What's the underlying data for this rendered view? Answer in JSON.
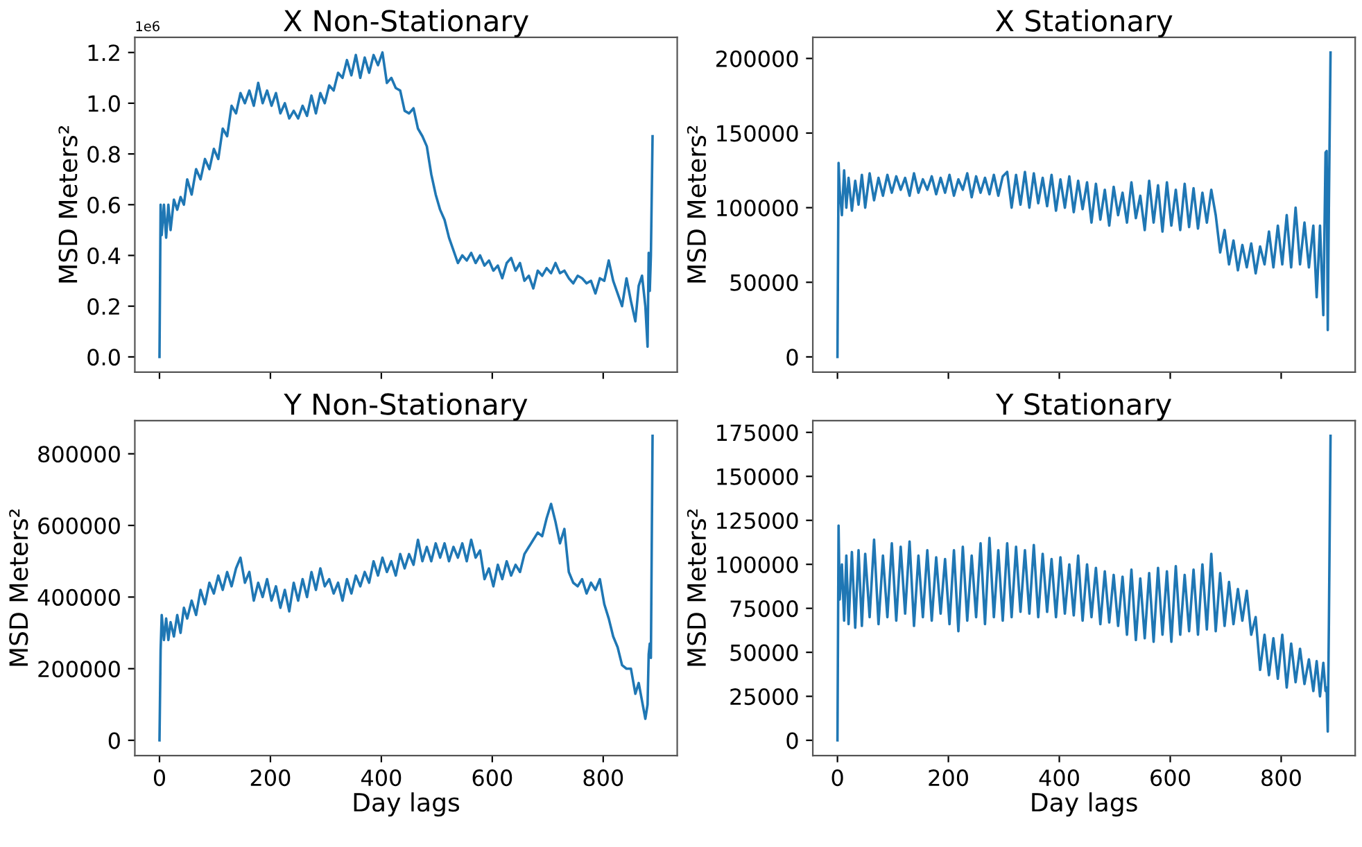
{
  "chart_data": [
    {
      "type": "line",
      "title": "X Non-Stationary",
      "ylabel": "MSD Meters²",
      "annotations": [
        "1e6"
      ],
      "tick_labels": "y",
      "grid": false,
      "xlim": [
        -44.45,
        933.45
      ],
      "xticks": [
        0,
        200,
        400,
        600,
        800
      ],
      "ylim": [
        -0.06,
        1.26
      ],
      "yticks": [
        {
          "value": 0,
          "label": "0.0"
        },
        0.2,
        0.4,
        0.6,
        0.8,
        {
          "value": 1,
          "label": "1.0"
        },
        1.2
      ],
      "series": [
        {
          "color": "#1f77b4",
          "x": [
            0,
            2,
            4,
            8,
            12,
            16,
            20,
            26,
            32,
            38,
            44,
            50,
            58,
            66,
            74,
            82,
            90,
            98,
            106,
            114,
            122,
            130,
            138,
            146,
            154,
            162,
            170,
            178,
            186,
            194,
            202,
            210,
            218,
            226,
            234,
            242,
            250,
            258,
            266,
            274,
            282,
            290,
            298,
            306,
            314,
            322,
            330,
            338,
            346,
            354,
            362,
            370,
            378,
            386,
            394,
            402,
            410,
            418,
            426,
            434,
            442,
            450,
            458,
            466,
            474,
            482,
            490,
            498,
            506,
            514,
            522,
            530,
            538,
            546,
            554,
            562,
            570,
            578,
            586,
            594,
            602,
            610,
            618,
            626,
            634,
            642,
            650,
            658,
            666,
            674,
            682,
            690,
            698,
            706,
            714,
            722,
            730,
            738,
            746,
            754,
            762,
            770,
            778,
            786,
            794,
            802,
            810,
            818,
            826,
            834,
            842,
            850,
            858,
            864,
            870,
            876,
            880,
            882,
            884,
            886,
            889
          ],
          "values": [
            0,
            0.6,
            0.48,
            0.6,
            0.47,
            0.6,
            0.5,
            0.62,
            0.58,
            0.63,
            0.6,
            0.7,
            0.64,
            0.74,
            0.7,
            0.78,
            0.74,
            0.82,
            0.78,
            0.9,
            0.87,
            0.99,
            0.96,
            1.04,
            1.0,
            1.05,
            0.99,
            1.08,
            1.0,
            1.05,
            0.99,
            1.04,
            0.96,
            1.0,
            0.94,
            0.97,
            0.94,
            0.99,
            0.95,
            1.03,
            0.96,
            1.04,
            1.0,
            1.07,
            1.05,
            1.12,
            1.1,
            1.17,
            1.11,
            1.19,
            1.1,
            1.18,
            1.12,
            1.19,
            1.15,
            1.2,
            1.08,
            1.1,
            1.06,
            1.05,
            0.97,
            0.96,
            0.98,
            0.9,
            0.87,
            0.83,
            0.72,
            0.64,
            0.58,
            0.54,
            0.47,
            0.42,
            0.37,
            0.4,
            0.38,
            0.41,
            0.37,
            0.4,
            0.36,
            0.38,
            0.34,
            0.36,
            0.31,
            0.37,
            0.39,
            0.34,
            0.37,
            0.3,
            0.32,
            0.27,
            0.34,
            0.32,
            0.35,
            0.33,
            0.37,
            0.33,
            0.34,
            0.31,
            0.29,
            0.32,
            0.31,
            0.29,
            0.3,
            0.25,
            0.31,
            0.3,
            0.38,
            0.3,
            0.25,
            0.2,
            0.31,
            0.22,
            0.14,
            0.28,
            0.32,
            0.2,
            0.04,
            0.41,
            0.26,
            0.4,
            0.87
          ]
        }
      ]
    },
    {
      "type": "line",
      "title": "X Stationary",
      "ylabel": "MSD Meters²",
      "tick_labels": "y",
      "grid": false,
      "xlim": [
        -44.45,
        933.45
      ],
      "xticks": [
        0,
        200,
        400,
        600,
        800
      ],
      "ylim": [
        -10200,
        214200
      ],
      "yticks": [
        0,
        50000,
        100000,
        150000,
        200000
      ],
      "series": [
        {
          "color": "#1f77b4",
          "x": [
            0,
            2,
            4,
            8,
            12,
            16,
            20,
            26,
            32,
            38,
            44,
            50,
            58,
            66,
            74,
            82,
            90,
            98,
            106,
            114,
            122,
            130,
            138,
            146,
            154,
            162,
            170,
            178,
            186,
            194,
            202,
            210,
            218,
            226,
            234,
            242,
            250,
            258,
            266,
            274,
            282,
            290,
            298,
            306,
            314,
            322,
            330,
            338,
            346,
            354,
            362,
            370,
            378,
            386,
            394,
            402,
            410,
            418,
            426,
            434,
            442,
            450,
            458,
            466,
            474,
            482,
            490,
            498,
            506,
            514,
            522,
            530,
            538,
            546,
            554,
            562,
            570,
            578,
            586,
            594,
            602,
            610,
            618,
            626,
            634,
            642,
            650,
            658,
            666,
            674,
            682,
            690,
            698,
            706,
            714,
            722,
            730,
            738,
            746,
            754,
            762,
            770,
            778,
            786,
            794,
            802,
            810,
            818,
            826,
            834,
            842,
            850,
            858,
            864,
            870,
            876,
            880,
            882,
            884,
            886,
            889
          ],
          "values": [
            0,
            130000,
            112000,
            95000,
            125000,
            100000,
            120000,
            98000,
            118000,
            102000,
            122000,
            100000,
            123000,
            105000,
            120000,
            108000,
            122000,
            110000,
            121000,
            112000,
            120000,
            108000,
            123000,
            110000,
            119000,
            112000,
            121000,
            109000,
            120000,
            110000,
            122000,
            108000,
            119000,
            112000,
            123000,
            107000,
            121000,
            110000,
            120000,
            109000,
            122000,
            108000,
            121000,
            124000,
            100000,
            122000,
            102000,
            124000,
            100000,
            123000,
            103000,
            120000,
            101000,
            122000,
            98000,
            119000,
            100000,
            121000,
            97000,
            118000,
            99000,
            117000,
            90000,
            116000,
            92000,
            112000,
            88000,
            114000,
            95000,
            110000,
            90000,
            117000,
            93000,
            108000,
            85000,
            118000,
            90000,
            115000,
            84000,
            117000,
            88000,
            112000,
            85000,
            116000,
            87000,
            113000,
            86000,
            110000,
            90000,
            112000,
            95000,
            70000,
            85000,
            62000,
            78000,
            58000,
            75000,
            60000,
            76000,
            56000,
            74000,
            62000,
            84000,
            60000,
            88000,
            62000,
            95000,
            60000,
            100000,
            62000,
            90000,
            60000,
            88000,
            40000,
            88000,
            28000,
            137000,
            138000,
            18000,
            100000,
            204000
          ]
        }
      ]
    },
    {
      "type": "line",
      "title": "Y Non-Stationary",
      "xlabel": "Day lags",
      "ylabel": "MSD Meters²",
      "grid": false,
      "xlim": [
        -44.45,
        933.45
      ],
      "xticks": [
        0,
        200,
        400,
        600,
        800
      ],
      "ylim": [
        -42500,
        892500
      ],
      "yticks": [
        0,
        200000,
        400000,
        600000,
        800000
      ],
      "series": [
        {
          "color": "#1f77b4",
          "x": [
            0,
            2,
            4,
            8,
            12,
            16,
            20,
            26,
            32,
            38,
            44,
            50,
            58,
            66,
            74,
            82,
            90,
            98,
            106,
            114,
            122,
            130,
            138,
            146,
            154,
            162,
            170,
            178,
            186,
            194,
            202,
            210,
            218,
            226,
            234,
            242,
            250,
            258,
            266,
            274,
            282,
            290,
            298,
            306,
            314,
            322,
            330,
            338,
            346,
            354,
            362,
            370,
            378,
            386,
            394,
            402,
            410,
            418,
            426,
            434,
            442,
            450,
            458,
            466,
            474,
            482,
            490,
            498,
            506,
            514,
            522,
            530,
            538,
            546,
            554,
            562,
            570,
            578,
            586,
            594,
            602,
            610,
            618,
            626,
            634,
            642,
            650,
            658,
            666,
            674,
            682,
            690,
            698,
            706,
            714,
            722,
            730,
            738,
            746,
            754,
            762,
            770,
            778,
            786,
            794,
            802,
            810,
            818,
            826,
            834,
            842,
            850,
            858,
            864,
            870,
            876,
            880,
            882,
            884,
            886,
            889
          ],
          "values": [
            0,
            250000,
            350000,
            280000,
            340000,
            280000,
            330000,
            290000,
            350000,
            300000,
            370000,
            340000,
            390000,
            350000,
            420000,
            380000,
            440000,
            410000,
            460000,
            420000,
            470000,
            430000,
            480000,
            510000,
            440000,
            470000,
            390000,
            440000,
            400000,
            450000,
            390000,
            430000,
            370000,
            420000,
            360000,
            440000,
            390000,
            450000,
            400000,
            470000,
            420000,
            480000,
            430000,
            450000,
            410000,
            440000,
            390000,
            450000,
            410000,
            460000,
            430000,
            470000,
            440000,
            500000,
            460000,
            510000,
            470000,
            500000,
            460000,
            520000,
            480000,
            520000,
            490000,
            560000,
            500000,
            540000,
            500000,
            550000,
            510000,
            550000,
            500000,
            540000,
            510000,
            550000,
            500000,
            560000,
            510000,
            530000,
            450000,
            480000,
            430000,
            490000,
            450000,
            500000,
            460000,
            490000,
            470000,
            520000,
            540000,
            560000,
            580000,
            570000,
            620000,
            660000,
            610000,
            550000,
            590000,
            470000,
            440000,
            430000,
            450000,
            410000,
            440000,
            420000,
            450000,
            380000,
            340000,
            290000,
            260000,
            210000,
            200000,
            200000,
            130000,
            160000,
            110000,
            60000,
            100000,
            240000,
            270000,
            230000,
            850000
          ]
        }
      ]
    },
    {
      "type": "line",
      "title": "Y Stationary",
      "xlabel": "Day lags",
      "ylabel": "MSD Meters²",
      "grid": false,
      "xlim": [
        -44.45,
        933.45
      ],
      "xticks": [
        0,
        200,
        400,
        600,
        800
      ],
      "ylim": [
        -8650,
        181650
      ],
      "yticks": [
        0,
        25000,
        50000,
        75000,
        100000,
        125000,
        150000,
        175000
      ],
      "series": [
        {
          "color": "#1f77b4",
          "x": [
            0,
            2,
            4,
            8,
            12,
            16,
            20,
            26,
            32,
            38,
            44,
            50,
            58,
            66,
            74,
            82,
            90,
            98,
            106,
            114,
            122,
            130,
            138,
            146,
            154,
            162,
            170,
            178,
            186,
            194,
            202,
            210,
            218,
            226,
            234,
            242,
            250,
            258,
            266,
            274,
            282,
            290,
            298,
            306,
            314,
            322,
            330,
            338,
            346,
            354,
            362,
            370,
            378,
            386,
            394,
            402,
            410,
            418,
            426,
            434,
            442,
            450,
            458,
            466,
            474,
            482,
            490,
            498,
            506,
            514,
            522,
            530,
            538,
            546,
            554,
            562,
            570,
            578,
            586,
            594,
            602,
            610,
            618,
            626,
            634,
            642,
            650,
            658,
            666,
            674,
            682,
            690,
            698,
            706,
            714,
            722,
            730,
            738,
            746,
            754,
            762,
            770,
            778,
            786,
            794,
            802,
            810,
            818,
            826,
            834,
            842,
            850,
            858,
            864,
            870,
            876,
            880,
            882,
            884,
            886,
            889
          ],
          "values": [
            0,
            122000,
            80000,
            100000,
            68000,
            105000,
            66000,
            107000,
            64000,
            108000,
            65000,
            106000,
            70000,
            114000,
            66000,
            105000,
            70000,
            112000,
            68000,
            110000,
            72000,
            113000,
            65000,
            105000,
            70000,
            108000,
            68000,
            104000,
            72000,
            103000,
            66000,
            108000,
            62000,
            110000,
            68000,
            105000,
            70000,
            112000,
            66000,
            115000,
            70000,
            108000,
            68000,
            112000,
            70000,
            110000,
            73000,
            108000,
            72000,
            111000,
            70000,
            106000,
            73000,
            103000,
            70000,
            104000,
            72000,
            100000,
            71000,
            105000,
            68000,
            100000,
            70000,
            98000,
            66000,
            96000,
            67000,
            94000,
            65000,
            93000,
            60000,
            97000,
            57000,
            92000,
            58000,
            95000,
            56000,
            98000,
            60000,
            96000,
            56000,
            99000,
            60000,
            94000,
            62000,
            97000,
            60000,
            100000,
            63000,
            106000,
            62000,
            95000,
            65000,
            90000,
            66000,
            86000,
            68000,
            85000,
            60000,
            70000,
            40000,
            60000,
            37000,
            58000,
            35000,
            60000,
            30000,
            55000,
            33000,
            52000,
            32000,
            46000,
            28000,
            45000,
            25000,
            44000,
            28000,
            30000,
            5000,
            65000,
            173000
          ]
        }
      ]
    }
  ]
}
